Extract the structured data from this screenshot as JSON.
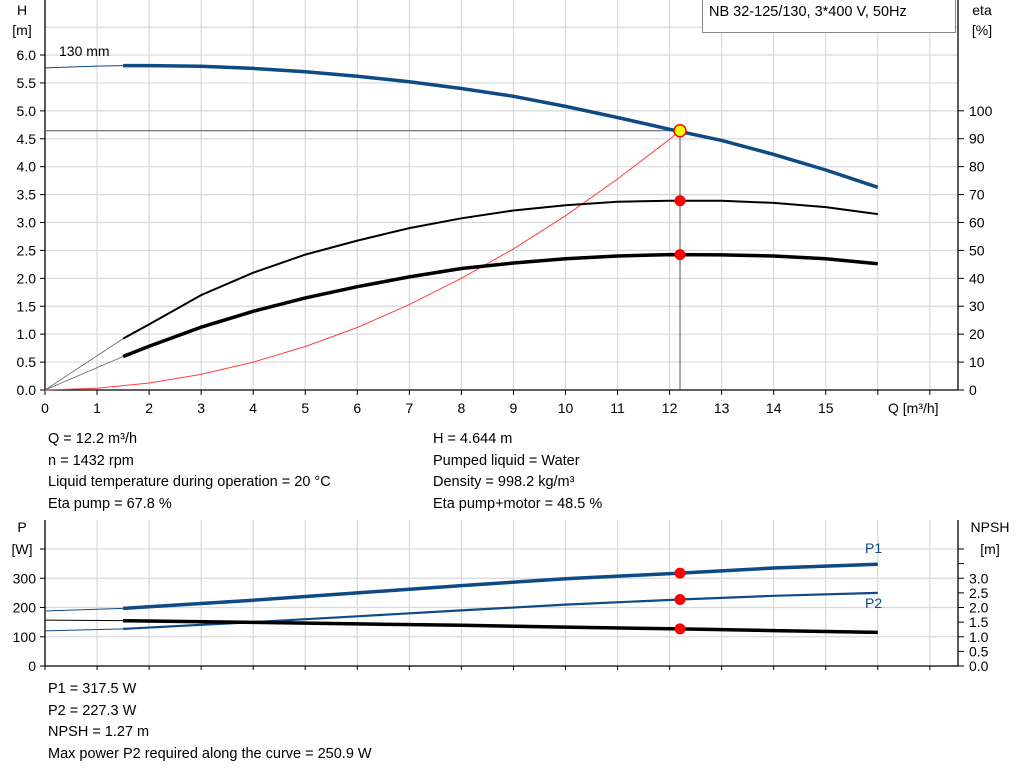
{
  "title": "NB 32-125/130, 3*400 V, 50Hz",
  "chart_data": [
    {
      "type": "line",
      "name": "head-efficiency",
      "xlabel": "Q [m³/h]",
      "ylabel": "H",
      "ylabel_unit": "[m]",
      "y2label": "eta",
      "y2label_unit": "[%]",
      "xlim": [
        0,
        17
      ],
      "ylim": [
        0,
        7
      ],
      "y2lim": [
        0,
        140
      ],
      "x_ticks": [
        "0",
        "1",
        "2",
        "3",
        "4",
        "5",
        "6",
        "7",
        "8",
        "9",
        "10",
        "11",
        "12",
        "13",
        "14",
        "15"
      ],
      "y_ticks": [
        "0.0",
        "0.5",
        "1.0",
        "1.5",
        "2.0",
        "2.5",
        "3.0",
        "3.5",
        "4.0",
        "4.5",
        "5.0",
        "5.5",
        "6.0"
      ],
      "y2_ticks": [
        "0",
        "10",
        "20",
        "30",
        "40",
        "50",
        "60",
        "70",
        "80",
        "90",
        "100"
      ],
      "grid": true,
      "curve_label": "130 mm",
      "series": [
        {
          "id": "head",
          "axis": "H",
          "color": "#0e4a84",
          "x": [
            0,
            1,
            1.5,
            2,
            3,
            4,
            5,
            6,
            7,
            8,
            9,
            10,
            11,
            12,
            13,
            14,
            15,
            16
          ],
          "y": [
            5.77,
            5.8,
            5.81,
            5.81,
            5.8,
            5.76,
            5.7,
            5.62,
            5.52,
            5.4,
            5.26,
            5.08,
            4.88,
            4.67,
            4.47,
            4.22,
            3.94,
            3.63
          ]
        },
        {
          "id": "eta-pump",
          "axis": "eta",
          "color": "#000000",
          "x": [
            1.5,
            2,
            3,
            4,
            5,
            6,
            7,
            8,
            9,
            10,
            11,
            12,
            13,
            14,
            15,
            16
          ],
          "y": [
            18.4,
            23.5,
            34,
            42,
            48.5,
            53.5,
            58,
            61.5,
            64.3,
            66.2,
            67.4,
            67.8,
            67.8,
            67,
            65.5,
            63
          ]
        },
        {
          "id": "eta-pump-motor",
          "axis": "eta",
          "color": "#000000",
          "x": [
            1.5,
            2,
            3,
            4,
            5,
            6,
            7,
            8,
            9,
            10,
            11,
            12,
            13,
            14,
            15,
            16
          ],
          "y": [
            12,
            15.7,
            22.5,
            28.2,
            33,
            37,
            40.5,
            43.5,
            45.5,
            47,
            48,
            48.5,
            48.4,
            48,
            47,
            45.2
          ]
        },
        {
          "id": "system-curve",
          "axis": "H",
          "color": "#ff4040",
          "x": [
            0,
            1,
            2,
            3,
            4,
            5,
            6,
            7,
            8,
            9,
            10,
            11,
            12,
            12.2
          ],
          "y": [
            0,
            0.03,
            0.125,
            0.28,
            0.5,
            0.78,
            1.12,
            1.53,
            2.0,
            2.53,
            3.12,
            3.78,
            4.49,
            4.644
          ]
        }
      ],
      "duty_point": {
        "q": 12.2,
        "h": 4.644,
        "eta_pump": 67.8,
        "eta_pump_motor": 48.5
      }
    },
    {
      "type": "line",
      "name": "power-npsh",
      "ylabel": "P",
      "ylabel_unit": "[W]",
      "y2label": "NPSH",
      "y2label_unit": "[m]",
      "xlim": [
        0,
        17
      ],
      "ylim": [
        0,
        500
      ],
      "y2lim": [
        0,
        5
      ],
      "y_ticks": [
        "0",
        "100",
        "200",
        "300"
      ],
      "y2_ticks": [
        "0.0",
        "0.5",
        "1.0",
        "1.5",
        "2.0",
        "2.5",
        "3.0"
      ],
      "grid": true,
      "series": [
        {
          "id": "p1",
          "name": "P1",
          "axis": "P",
          "color": "#0e4a84",
          "x": [
            0,
            1.5,
            4,
            6,
            8,
            10,
            12.2,
            14,
            16
          ],
          "y": [
            188,
            197,
            225,
            250,
            275,
            298,
            317.5,
            335,
            348
          ]
        },
        {
          "id": "p2",
          "name": "P2",
          "axis": "P",
          "color": "#0e4a84",
          "x": [
            0,
            1.5,
            4,
            6,
            8,
            10,
            12.2,
            14,
            16
          ],
          "y": [
            120,
            127,
            150,
            170,
            190,
            210,
            227.3,
            240,
            250
          ]
        },
        {
          "id": "npsh",
          "axis": "NPSH",
          "color": "#000000",
          "x": [
            0,
            1.5,
            4,
            6,
            8,
            10,
            12.2,
            14,
            16
          ],
          "y": [
            1.57,
            1.55,
            1.49,
            1.44,
            1.39,
            1.33,
            1.27,
            1.21,
            1.15
          ]
        }
      ],
      "duty_point": {
        "q": 12.2,
        "p1": 317.5,
        "p2": 227.3,
        "npsh": 1.27
      }
    }
  ],
  "info_top": {
    "left": [
      "Q = 12.2 m³/h",
      "n = 1432 rpm",
      "Liquid temperature during operation = 20 °C",
      "Eta pump = 67.8 %"
    ],
    "right": [
      "H = 4.644 m",
      "Pumped liquid = Water",
      "Density = 998.2 kg/m³",
      "Eta pump+motor = 48.5 %"
    ]
  },
  "info_bottom": [
    "P1 = 317.5 W",
    "P2 = 227.3 W",
    "NPSH = 1.27 m",
    "Max power P2 required along the curve = 250.9 W"
  ],
  "colors": {
    "head": "#0e4a84",
    "duty_marker": "#ff0000",
    "duty_marker_fill": "#ffff00",
    "grid": "#d9d9d9"
  }
}
